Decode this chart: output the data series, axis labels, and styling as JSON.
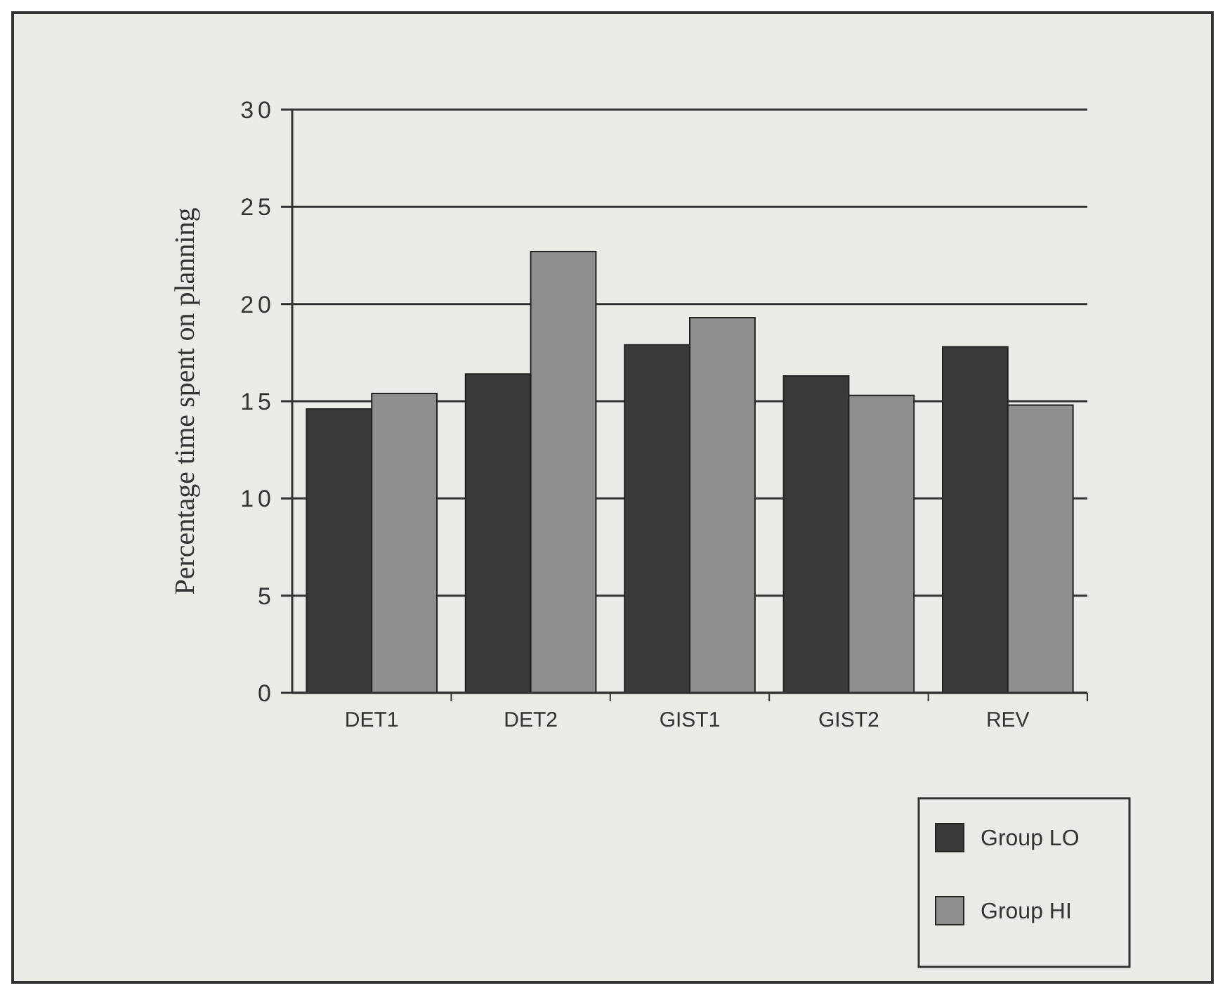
{
  "chart_data": {
    "type": "bar",
    "ylabel": "Percentage time spent on planning",
    "categories": [
      "DET1",
      "DET2",
      "GIST1",
      "GIST2",
      "REV"
    ],
    "series": [
      {
        "name": "Group LO",
        "color": "#3a3a3a",
        "values": [
          14.6,
          16.4,
          17.9,
          16.3,
          17.8
        ]
      },
      {
        "name": "Group HI",
        "color": "#8e8e8e",
        "values": [
          15.4,
          22.7,
          19.3,
          15.3,
          14.8
        ]
      }
    ],
    "ylim": [
      0,
      30
    ],
    "yticks": [
      0,
      5,
      10,
      15,
      20,
      25,
      30
    ],
    "grid": "y",
    "legend": "bottom right"
  }
}
